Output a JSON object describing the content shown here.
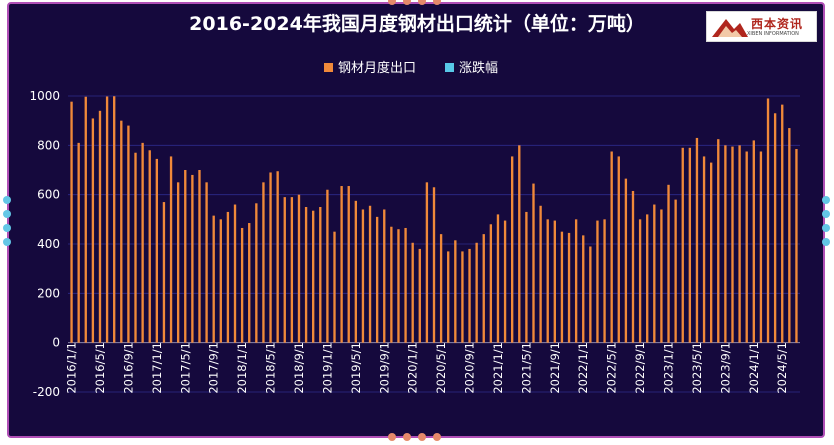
{
  "chart_data": {
    "type": "bar",
    "title": "2016-2024年我国月度钢材出口统计（单位：万吨）",
    "legend": [
      {
        "name": "钢材月度出口",
        "color": "#f0893a"
      },
      {
        "name": "涨跌幅",
        "color": "#58c8e8"
      }
    ],
    "legend_position": "top-center",
    "ylim": [
      -200,
      1000
    ],
    "yticks": [
      -200,
      0,
      200,
      400,
      600,
      800,
      1000
    ],
    "grid": true,
    "xtick_labels": [
      "2016/1/1",
      "2016/5/1",
      "2016/9/1",
      "2017/1/1",
      "2017/5/1",
      "2017/9/1",
      "2018/1/1",
      "2018/5/1",
      "2018/9/1",
      "2019/1/1",
      "2019/5/1",
      "2019/9/1",
      "2020/1/1",
      "2020/5/1",
      "2020/9/1",
      "2021/1/1",
      "2021/5/1",
      "2021/9/1",
      "2022/1/1",
      "2022/5/1",
      "2022/9/1",
      "2023/1/1",
      "2023/5/1",
      "2023/9/1",
      "2024/1/1",
      "2024/5/1"
    ],
    "series": [
      {
        "name": "钢材月度出口",
        "color": "#f0893a",
        "x": [
          "2016/1",
          "2016/2",
          "2016/3",
          "2016/4",
          "2016/5",
          "2016/6",
          "2016/7",
          "2016/8",
          "2016/9",
          "2016/10",
          "2016/11",
          "2016/12",
          "2017/1",
          "2017/2",
          "2017/3",
          "2017/4",
          "2017/5",
          "2017/6",
          "2017/7",
          "2017/8",
          "2017/9",
          "2017/10",
          "2017/11",
          "2017/12",
          "2018/1",
          "2018/2",
          "2018/3",
          "2018/4",
          "2018/5",
          "2018/6",
          "2018/7",
          "2018/8",
          "2018/9",
          "2018/10",
          "2018/11",
          "2018/12",
          "2019/1",
          "2019/2",
          "2019/3",
          "2019/4",
          "2019/5",
          "2019/6",
          "2019/7",
          "2019/8",
          "2019/9",
          "2019/10",
          "2019/11",
          "2019/12",
          "2020/1",
          "2020/2",
          "2020/3",
          "2020/4",
          "2020/5",
          "2020/6",
          "2020/7",
          "2020/8",
          "2020/9",
          "2020/10",
          "2020/11",
          "2020/12",
          "2021/1",
          "2021/2",
          "2021/3",
          "2021/4",
          "2021/5",
          "2021/6",
          "2021/7",
          "2021/8",
          "2021/9",
          "2021/10",
          "2021/11",
          "2021/12",
          "2022/1",
          "2022/2",
          "2022/3",
          "2022/4",
          "2022/5",
          "2022/6",
          "2022/7",
          "2022/8",
          "2022/9",
          "2022/10",
          "2022/11",
          "2022/12",
          "2023/1",
          "2023/2",
          "2023/3",
          "2023/4",
          "2023/5",
          "2023/6",
          "2023/7",
          "2023/8",
          "2023/9",
          "2023/10",
          "2023/11",
          "2023/12",
          "2024/1",
          "2024/2",
          "2024/3",
          "2024/4",
          "2024/5",
          "2024/6",
          "2024/7"
        ],
        "values": [
          977,
          810,
          997,
          909,
          940,
          998,
          999,
          900,
          880,
          770,
          810,
          780,
          745,
          570,
          755,
          650,
          700,
          680,
          700,
          650,
          515,
          500,
          530,
          560,
          465,
          485,
          565,
          650,
          690,
          695,
          590,
          590,
          600,
          550,
          535,
          550,
          620,
          450,
          635,
          635,
          575,
          540,
          555,
          510,
          540,
          470,
          460,
          465,
          405,
          380,
          650,
          630,
          440,
          370,
          415,
          370,
          380,
          405,
          440,
          480,
          520,
          495,
          755,
          800,
          530,
          645,
          555,
          500,
          495,
          450,
          445,
          500,
          435,
          390,
          495,
          500,
          775,
          755,
          665,
          615,
          500,
          520,
          560,
          540,
          640,
          580,
          790,
          790,
          830,
          755,
          730,
          825,
          800,
          795,
          800,
          775,
          820,
          775,
          990,
          930,
          965,
          870,
          785
        ]
      },
      {
        "name": "涨跌幅",
        "color": "#58c8e8",
        "values": []
      }
    ]
  }
}
